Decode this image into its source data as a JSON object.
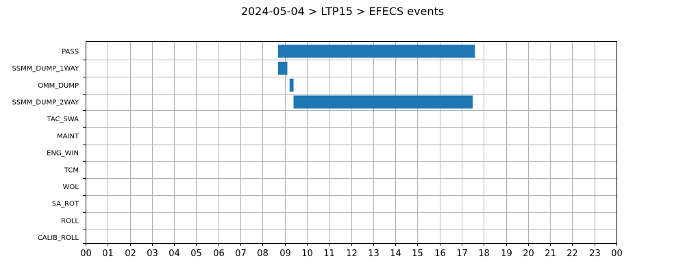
{
  "chart_data": {
    "type": "bar",
    "orientation": "horizontal-timeline",
    "title": "2024-05-04 > LTP15 > EFECS events",
    "categories": [
      "PASS",
      "SSMM_DUMP_1WAY",
      "OMM_DUMP",
      "SSMM_DUMP_2WAY",
      "TAC_SWA",
      "MAINT",
      "ENG_WIN",
      "TCM",
      "WOL",
      "SA_ROT",
      "ROLL",
      "CALIB_ROLL"
    ],
    "xlim": [
      0,
      24
    ],
    "x_tick_labels": [
      "00",
      "01",
      "02",
      "03",
      "04",
      "05",
      "06",
      "07",
      "08",
      "09",
      "10",
      "11",
      "12",
      "13",
      "14",
      "15",
      "16",
      "17",
      "18",
      "19",
      "20",
      "21",
      "22",
      "23",
      "00"
    ],
    "grid": true,
    "bar_color": "#1f77b4",
    "events": [
      {
        "category": "PASS",
        "start": 8.7,
        "end": 17.6
      },
      {
        "category": "SSMM_DUMP_1WAY",
        "start": 8.7,
        "end": 9.12
      },
      {
        "category": "OMM_DUMP",
        "start": 9.22,
        "end": 9.4
      },
      {
        "category": "SSMM_DUMP_2WAY",
        "start": 9.4,
        "end": 17.5
      }
    ]
  }
}
